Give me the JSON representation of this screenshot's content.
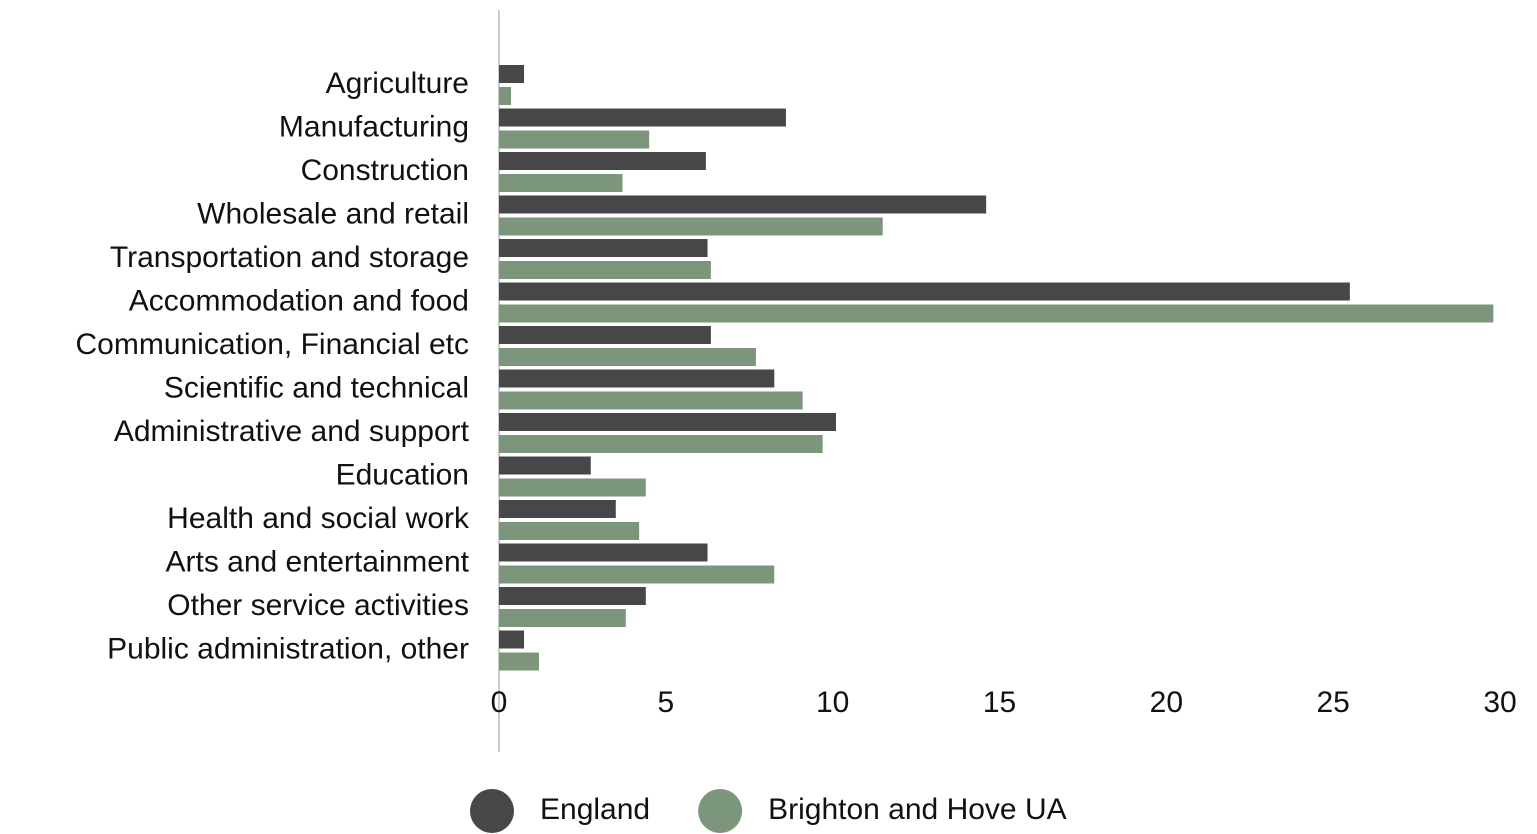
{
  "chart_data": {
    "type": "bar",
    "orientation": "horizontal",
    "categories": [
      "Agriculture",
      "Manufacturing",
      "Construction",
      "Wholesale and retail",
      "Transportation and storage",
      "Accommodation and food",
      "Communication, Financial etc",
      "Scientific and technical",
      "Administrative and support",
      "Education",
      "Health and social work",
      "Arts and entertainment",
      "Other service activities",
      "Public administration, other"
    ],
    "series": [
      {
        "name": "England",
        "color": "#474747",
        "values": [
          0.75,
          8.6,
          6.2,
          14.6,
          6.25,
          25.5,
          6.35,
          8.25,
          10.1,
          2.75,
          3.5,
          6.25,
          4.4,
          0.75
        ]
      },
      {
        "name": "Brighton and Hove UA",
        "color": "#7c967c",
        "values": [
          0.36,
          4.5,
          3.7,
          11.5,
          6.35,
          29.8,
          7.7,
          9.1,
          9.7,
          4.4,
          4.2,
          8.25,
          3.8,
          1.2
        ]
      }
    ],
    "xlim": [
      0,
      30
    ],
    "xticks": [
      0,
      5,
      10,
      15,
      20,
      25,
      30
    ],
    "legend": "bottom"
  }
}
